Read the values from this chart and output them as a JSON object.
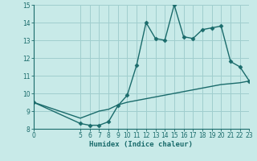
{
  "xlabel": "Humidex (Indice chaleur)",
  "bg_color": "#c8eae8",
  "line_color": "#1a6b6b",
  "grid_color": "#a0cece",
  "x_curve1": [
    0,
    5,
    6,
    7,
    8,
    9,
    10,
    11,
    12,
    13,
    14,
    15,
    16,
    17,
    18,
    19,
    20,
    21,
    22,
    23
  ],
  "y_curve1": [
    9.5,
    8.3,
    8.2,
    8.2,
    8.4,
    9.3,
    9.9,
    11.6,
    14.0,
    13.1,
    13.0,
    15.0,
    13.2,
    13.1,
    13.6,
    13.7,
    13.8,
    11.8,
    11.5,
    10.7
  ],
  "x_curve2": [
    0,
    5,
    6,
    7,
    8,
    9,
    10,
    11,
    12,
    13,
    14,
    15,
    16,
    17,
    18,
    19,
    20,
    21,
    22,
    23
  ],
  "y_curve2": [
    9.5,
    8.6,
    8.8,
    9.0,
    9.1,
    9.35,
    9.5,
    9.6,
    9.7,
    9.8,
    9.9,
    10.0,
    10.1,
    10.2,
    10.3,
    10.4,
    10.5,
    10.55,
    10.6,
    10.7
  ],
  "xlim": [
    0,
    23
  ],
  "ylim": [
    8,
    15
  ],
  "xticks": [
    0,
    5,
    6,
    7,
    8,
    9,
    10,
    11,
    12,
    13,
    14,
    15,
    16,
    17,
    18,
    19,
    20,
    21,
    22,
    23
  ],
  "yticks": [
    8,
    9,
    10,
    11,
    12,
    13,
    14,
    15
  ],
  "markersize": 2.5,
  "linewidth": 1.0,
  "tick_fontsize": 5.5,
  "xlabel_fontsize": 6.5
}
